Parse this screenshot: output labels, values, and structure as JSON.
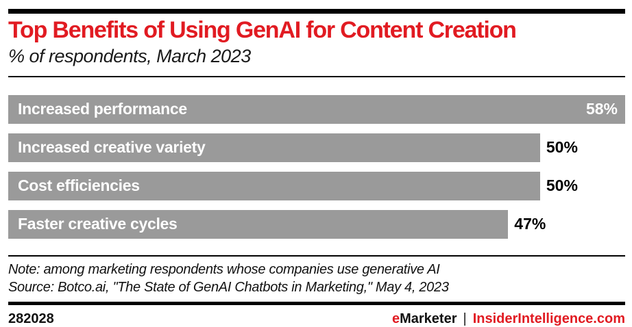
{
  "header": {
    "title": "Top Benefits of Using GenAI for Content Creation",
    "subtitle": "% of respondents, March 2023"
  },
  "chart_data": {
    "type": "bar",
    "orientation": "horizontal",
    "title": "Top Benefits of Using GenAI for Content Creation",
    "subtitle": "% of respondents, March 2023",
    "categories": [
      "Increased performance",
      "Increased creative variety",
      "Cost efficiencies",
      "Faster creative cycles"
    ],
    "values": [
      58,
      50,
      50,
      47
    ],
    "value_labels": [
      "58%",
      "50%",
      "50%",
      "47%"
    ],
    "value_label_positions": [
      "inside",
      "outside",
      "outside",
      "outside"
    ],
    "xlim": [
      0,
      58
    ],
    "xlabel": "",
    "ylabel": "",
    "grid": false,
    "legend": false,
    "bar_color": "#9a9a9a"
  },
  "notes": {
    "note": "Note: among marketing respondents whose companies use generative AI",
    "source": "Source: Botco.ai, \"The State of GenAI Chatbots in Marketing,\" May 4, 2023"
  },
  "footer": {
    "chart_id": "282028",
    "brand_first_letter": "e",
    "brand_rest": "Marketer",
    "separator": "|",
    "site": "InsiderIntelligence.com"
  },
  "colors": {
    "accent_red": "#e11b22",
    "bar_gray": "#9a9a9a",
    "rule_black": "#000000"
  }
}
